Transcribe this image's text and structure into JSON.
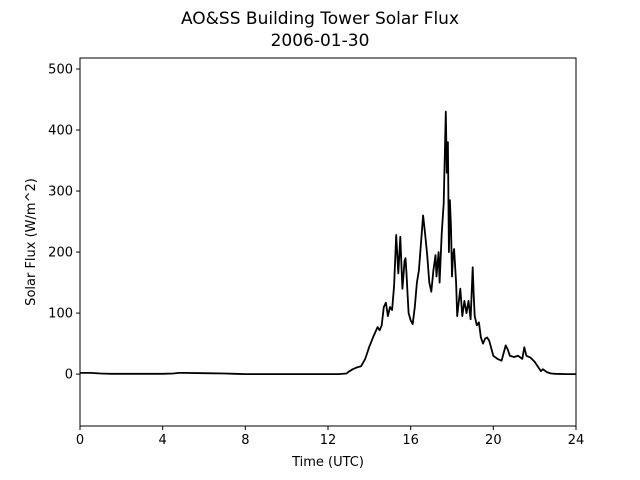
{
  "chart_data": {
    "type": "line",
    "title": "AO&SS Building Tower Solar Flux",
    "subtitle": "2006-01-30",
    "xlabel": "Time (UTC)",
    "ylabel": "Solar Flux (W/m^2)",
    "xlim": [
      0,
      24
    ],
    "ylim": [
      -85,
      518
    ],
    "xticks": [
      0,
      4,
      8,
      12,
      16,
      20,
      24
    ],
    "yticks": [
      0,
      100,
      200,
      300,
      400,
      500
    ],
    "grid": false,
    "line_color": "#000000",
    "series": [
      {
        "x": [
          0,
          0.5,
          1,
          1.5,
          2,
          3,
          4,
          4.5,
          4.8,
          5,
          6,
          7,
          7.5,
          8,
          9,
          10,
          11,
          12,
          12.5,
          12.9,
          13.0,
          13.2,
          13.4,
          13.6,
          13.8,
          14.0,
          14.2,
          14.4,
          14.5,
          14.6,
          14.7,
          14.8,
          14.9,
          15.0,
          15.1,
          15.2,
          15.3,
          15.4,
          15.5,
          15.55,
          15.6,
          15.65,
          15.7,
          15.75,
          15.8,
          15.85,
          15.9,
          16.0,
          16.1,
          16.2,
          16.3,
          16.4,
          16.5,
          16.6,
          16.7,
          16.8,
          16.9,
          17.0,
          17.1,
          17.2,
          17.25,
          17.3,
          17.35,
          17.4,
          17.5,
          17.6,
          17.7,
          17.75,
          17.8,
          17.85,
          17.9,
          17.95,
          18.0,
          18.05,
          18.1,
          18.2,
          18.25,
          18.3,
          18.4,
          18.5,
          18.6,
          18.7,
          18.8,
          18.9,
          19.0,
          19.05,
          19.1,
          19.2,
          19.3,
          19.4,
          19.5,
          19.6,
          19.7,
          19.8,
          20.0,
          20.2,
          20.4,
          20.6,
          20.7,
          20.8,
          21.0,
          21.2,
          21.4,
          21.5,
          21.6,
          21.8,
          22.0,
          22.2,
          22.3,
          22.4,
          22.6,
          22.8,
          23.0,
          23.5,
          24
        ],
        "y": [
          2,
          2,
          1,
          0.5,
          0.5,
          0.5,
          0.5,
          1,
          2,
          2,
          1.5,
          1,
          0.5,
          0,
          0,
          0,
          0,
          0,
          0,
          1,
          4,
          8,
          11,
          13,
          25,
          45,
          62,
          77,
          72,
          80,
          110,
          117,
          95,
          110,
          105,
          145,
          228,
          165,
          225,
          180,
          140,
          160,
          185,
          190,
          165,
          130,
          100,
          88,
          82,
          110,
          150,
          170,
          215,
          260,
          230,
          195,
          150,
          135,
          170,
          195,
          160,
          180,
          200,
          150,
          230,
          280,
          430,
          330,
          380,
          200,
          285,
          240,
          160,
          195,
          205,
          150,
          95,
          110,
          140,
          95,
          120,
          100,
          120,
          90,
          175,
          130,
          95,
          80,
          85,
          60,
          50,
          58,
          60,
          55,
          30,
          25,
          22,
          47,
          40,
          30,
          28,
          30,
          25,
          44,
          30,
          27,
          20,
          10,
          5,
          8,
          3,
          1,
          0.5,
          0,
          0
        ]
      }
    ]
  }
}
